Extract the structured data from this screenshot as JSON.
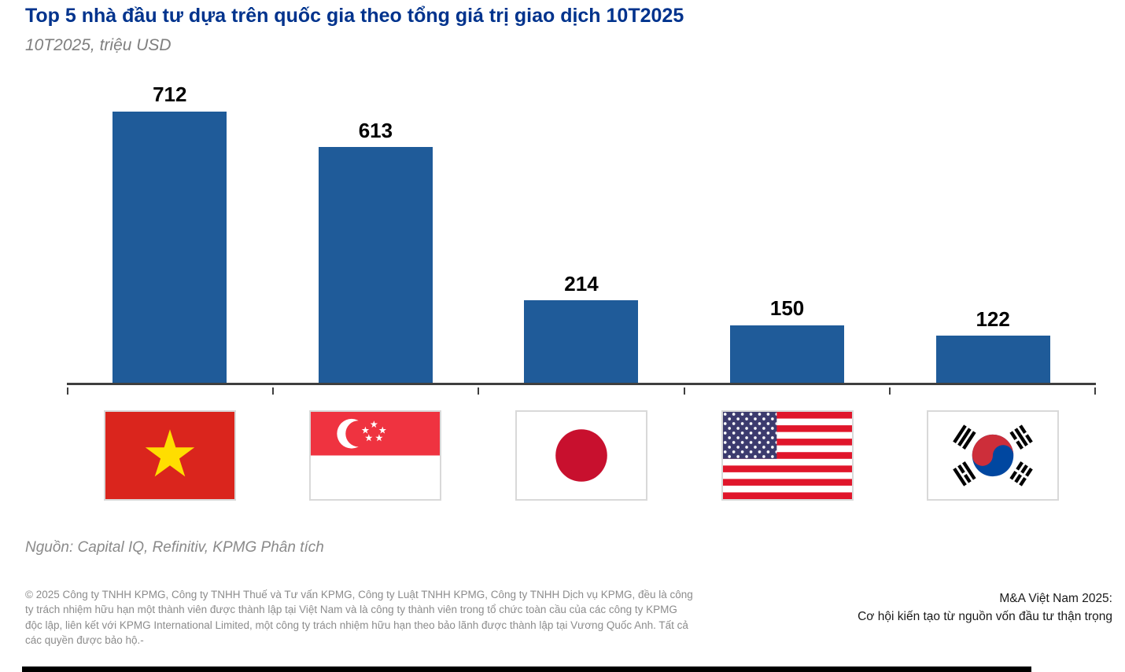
{
  "header": {
    "title": "Top 5 nhà đầu tư dựa trên quốc gia theo tổng giá trị giao dịch 10T2025",
    "subtitle": "10T2025, triệu USD"
  },
  "chart_data": {
    "type": "bar",
    "title": "Top 5 nhà đầu tư dựa trên quốc gia theo tổng giá trị giao dịch 10T2025",
    "subtitle": "10T2025, triệu USD",
    "unit": "triệu USD",
    "categories": [
      "Việt Nam",
      "Singapore",
      "Nhật Bản",
      "Hoa Kỳ",
      "Hàn Quốc"
    ],
    "category_icons": [
      "vietnam-flag-icon",
      "singapore-flag-icon",
      "japan-flag-icon",
      "usa-flag-icon",
      "south-korea-flag-icon"
    ],
    "values": [
      712,
      613,
      214,
      150,
      122
    ],
    "ylim": [
      0,
      712
    ],
    "bar_color": "#1F5B99",
    "axis_color": "#3f3f3f",
    "data_labels": true,
    "grid": false,
    "legend_position": "none"
  },
  "source": "Nguồn: Capital IQ, Refinitiv, KPMG Phân tích",
  "footer": {
    "copyright": "© 2025 Công ty TNHH KPMG, Công ty TNHH Thuế và Tư vấn KPMG, Công ty Luật TNHH KPMG, Công ty TNHH Dịch vụ KPMG, đều là công ty trách nhiệm hữu hạn một thành viên được thành lập tại Việt Nam và là công ty thành viên trong tổ chức toàn cầu của các công ty KPMG độc lập, liên kết với KPMG International Limited, một công ty trách nhiệm hữu hạn theo bảo lãnh được thành lập tại Vương Quốc Anh. Tất cả các quyền được bảo hộ.-",
    "report_title_line1": "M&A Việt Nam 2025:",
    "report_title_line2": "Cơ hội kiến tạo từ nguồn vốn đầu tư thận trọng"
  }
}
